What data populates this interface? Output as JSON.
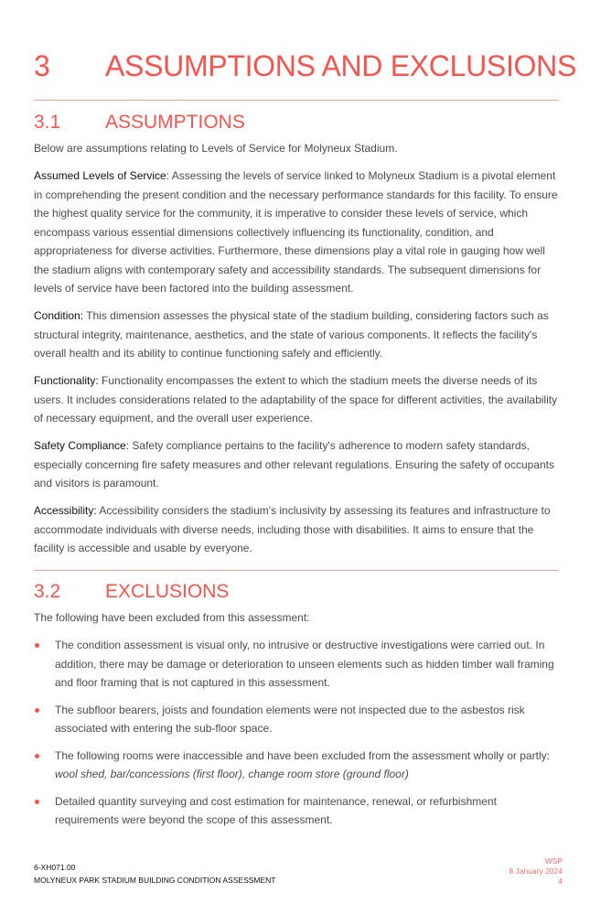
{
  "heading": {
    "number": "3",
    "title": "ASSUMPTIONS AND EXCLUSIONS"
  },
  "section1": {
    "number": "3.1",
    "title": "ASSUMPTIONS",
    "intro": "Below are assumptions relating to Levels of Service for Molyneux Stadium.",
    "paragraphs": [
      {
        "term": "Assumed Levels of Service",
        "text": ": Assessing the levels of service linked to Molyneux Stadium is a pivotal element in comprehending the present condition and the necessary performance standards for this facility. To ensure the highest quality service for the community, it is imperative to consider these levels of service, which encompass various essential dimensions collectively influencing its functionality, condition, and appropriateness for diverse activities. Furthermore, these dimensions play a vital role in gauging how well the stadium aligns with contemporary safety and accessibility standards. The subsequent dimensions for levels of service have been factored into the building assessment."
      },
      {
        "term": "Condition:",
        "text": " This dimension assesses the physical state of the stadium building, considering factors such as structural integrity, maintenance, aesthetics, and the state of various components. It reflects the facility's overall health and its ability to continue functioning safely and efficiently."
      },
      {
        "term": "Functionality:",
        "text": " Functionality encompasses the extent to which the stadium meets the diverse needs of its users. It includes considerations related to the adaptability of the space for different activities, the availability of necessary equipment, and the overall user experience."
      },
      {
        "term": "Safety Compliance",
        "text": ": Safety compliance pertains to the facility's adherence to modern safety standards, especially concerning fire safety measures and other relevant regulations. Ensuring the safety of occupants and visitors is paramount."
      },
      {
        "term": "Accessibility:",
        "text": " Accessibility considers the stadium's inclusivity by assessing its features and infrastructure to accommodate individuals with diverse needs, including those with disabilities. It aims to ensure that the facility is accessible and usable by everyone."
      }
    ]
  },
  "section2": {
    "number": "3.2",
    "title": "EXCLUSIONS",
    "intro": "The following have been excluded from this assessment:",
    "bullets": [
      {
        "text": "The condition assessment is visual only, no intrusive or destructive investigations were carried out. In addition, there may be damage or deterioration to unseen elements such as hidden timber wall framing and floor framing that is not captured in this assessment.",
        "italic": ""
      },
      {
        "text": "The subfloor bearers, joists and foundation elements were not inspected due to the asbestos risk associated with entering the sub-floor space.",
        "italic": ""
      },
      {
        "text": "The following rooms were inaccessible and have been excluded from the assessment wholly or partly: ",
        "italic": "wool shed, bar/concessions (first floor), change room store (ground floor)"
      },
      {
        "text": "Detailed quantity surveying and cost estimation for maintenance, renewal, or refurbishment requirements were beyond the scope of this assessment.",
        "italic": ""
      }
    ]
  },
  "footer": {
    "code": "6-XH071.00",
    "project": "MOLYNEUX PARK STADIUM BUILDING CONDITION ASSESSMENT",
    "company": "WSP",
    "date": "8 January 2024",
    "page": "4"
  },
  "colors": {
    "accent": "#f5544f"
  }
}
